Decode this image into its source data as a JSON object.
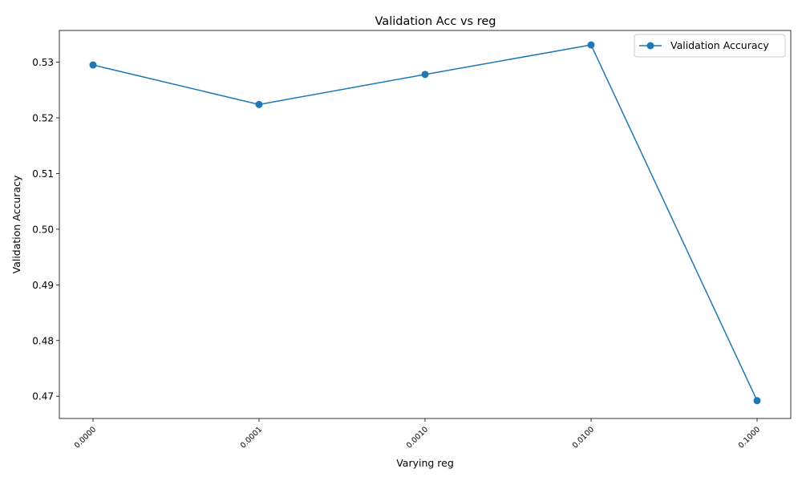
{
  "chart_data": {
    "type": "line",
    "title": "Validation Acc vs reg",
    "xlabel": "Varying reg",
    "ylabel": "Validation Accuracy",
    "categories": [
      "0.0000",
      "0.0001",
      "0.0010",
      "0.0100",
      "0.1000"
    ],
    "series": [
      {
        "name": "Validation Accuracy",
        "values": [
          0.5295,
          0.5224,
          0.5278,
          0.5331,
          0.4692
        ],
        "color": "#1f77b4",
        "marker": "circle"
      }
    ],
    "yticks": [
      "0.47",
      "0.48",
      "0.49",
      "0.50",
      "0.51",
      "0.52",
      "0.53"
    ],
    "ylim": [
      0.466,
      0.5357
    ],
    "grid": false,
    "legend_position": "top-right"
  }
}
